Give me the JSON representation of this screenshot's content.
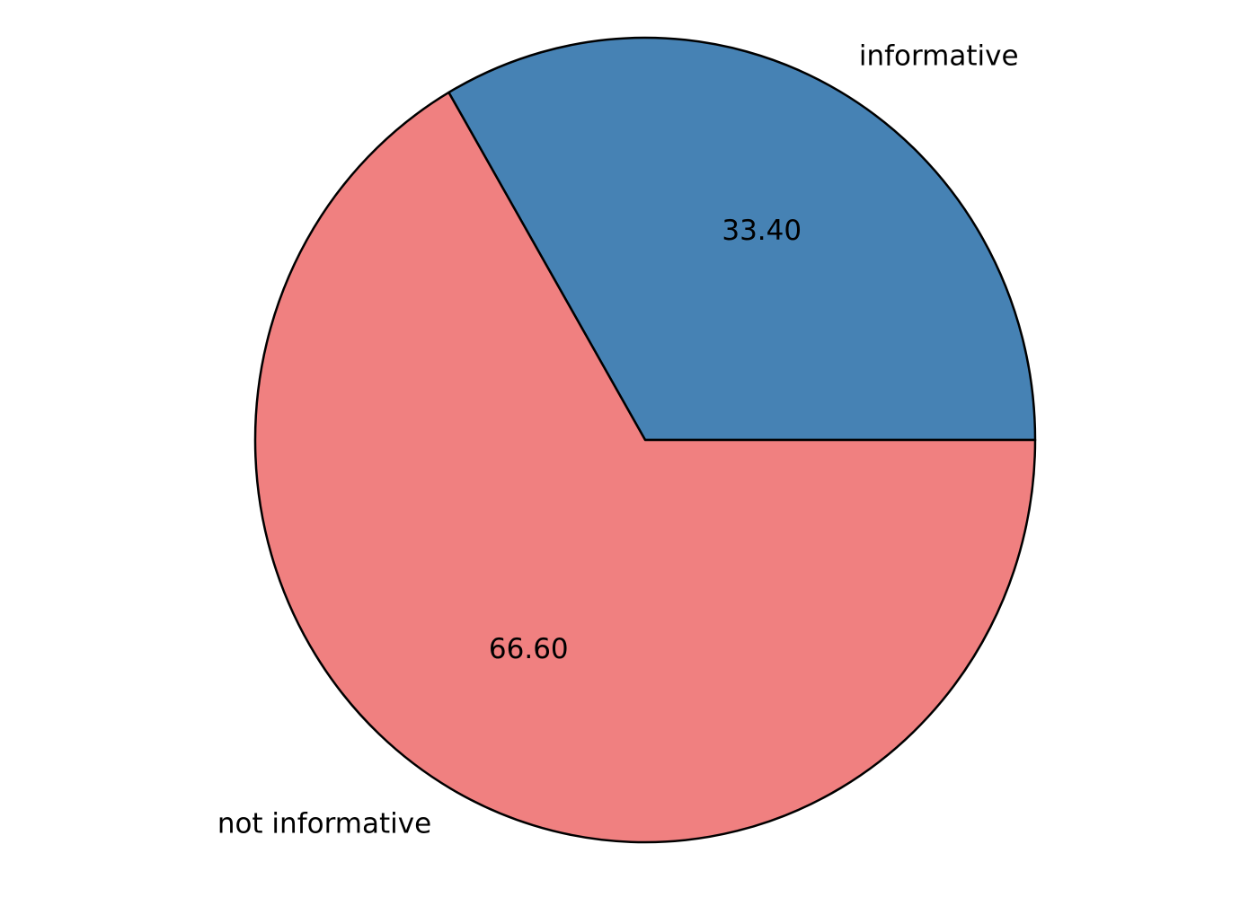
{
  "chart_data": {
    "type": "pie",
    "title": "",
    "slices": [
      {
        "label": "informative",
        "value": 33.4,
        "value_label": "33.40",
        "color": "#4682b4"
      },
      {
        "label": "not informative",
        "value": 66.6,
        "value_label": "66.60",
        "color": "#f08080"
      }
    ],
    "start_angle_deg": 0,
    "direction": "counterclockwise",
    "edge_color": "#000000"
  }
}
